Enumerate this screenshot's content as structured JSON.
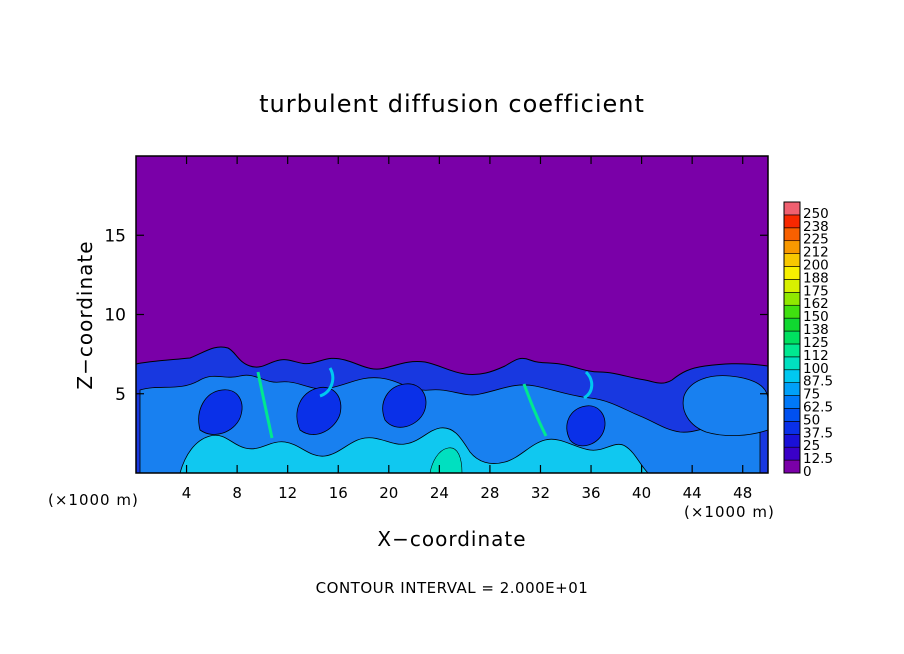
{
  "chart_data": {
    "type": "heatmap",
    "title": "turbulent diffusion coefficient",
    "xlabel": "X−coordinate",
    "ylabel": "Z−coordinate",
    "x_unit_left": "(×1000 m)",
    "x_unit_right": "(×1000 m)",
    "footer": "CONTOUR INTERVAL = 2.000E+01",
    "xlim": [
      0,
      50
    ],
    "ylim": [
      0,
      20
    ],
    "x_ticks": [
      4,
      8,
      12,
      16,
      20,
      24,
      28,
      32,
      36,
      40,
      44,
      48
    ],
    "y_ticks": [
      5,
      10,
      15
    ],
    "contour_interval": 20,
    "colorbar": {
      "levels": [
        "0",
        "12.5",
        "25",
        "37.5",
        "50",
        "62.5",
        "75",
        "87.5",
        "100",
        "112",
        "125",
        "138",
        "150",
        "162",
        "175",
        "188",
        "200",
        "212",
        "225",
        "238",
        "250"
      ],
      "colors": [
        "#7a00a8",
        "#3a00c8",
        "#1a10d8",
        "#0a30e8",
        "#0050f0",
        "#0078f8",
        "#00a0f8",
        "#00c8f0",
        "#00e0c0",
        "#00e890",
        "#00e060",
        "#10d830",
        "#40e010",
        "#90e800",
        "#d8f000",
        "#f8f000",
        "#f8c800",
        "#f89800",
        "#f86000",
        "#f82800",
        "#f06070"
      ]
    },
    "field_description_values": {
      "background_value": 0,
      "turbulent_layer_top_km": 7
    }
  }
}
